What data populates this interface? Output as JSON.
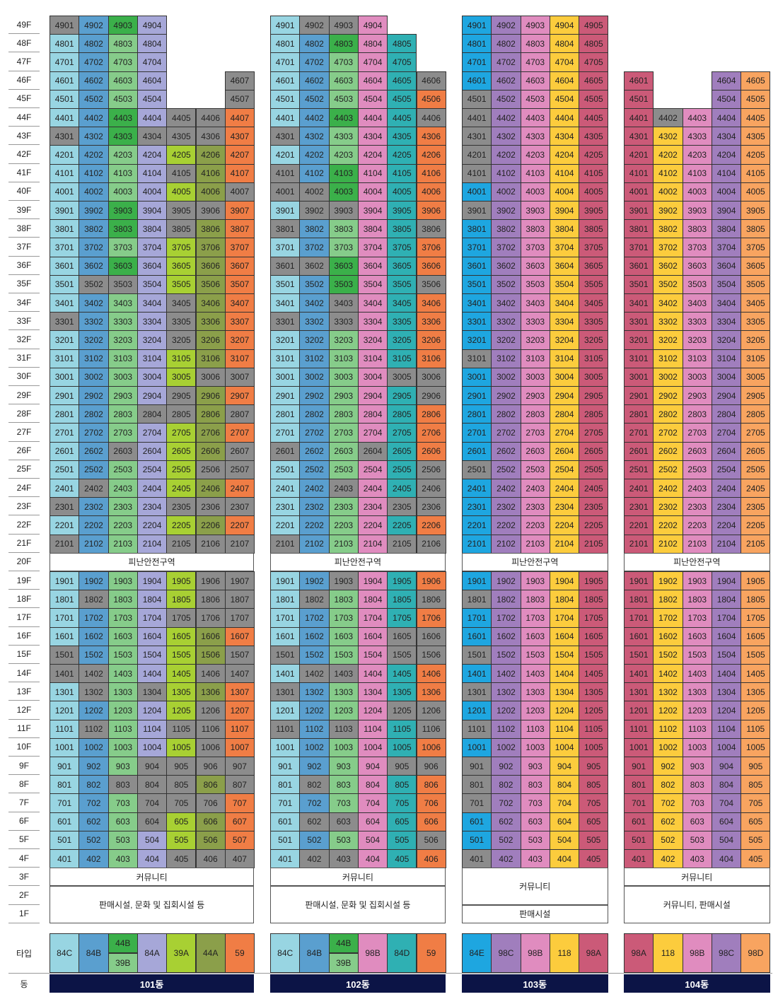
{
  "colors": {
    "skyblue": "#98d5e2",
    "blue": "#5a9fcf",
    "green": "#3bb04a",
    "lightgreen": "#86cc8a",
    "lavender": "#a6a7d8",
    "lime": "#a8d033",
    "olive": "#8b9f4a",
    "orange": "#f07d45",
    "gray": "#8c8c8c",
    "pink": "#e08cbf",
    "teal": "#2fb0b3",
    "cyan": "#1ea6e0",
    "purple": "#a07ebd",
    "yellow": "#fccc3d",
    "crimson": "#cb5a78",
    "peach": "#f8a460"
  },
  "floors": [
    "49F",
    "48F",
    "47F",
    "46F",
    "45F",
    "44F",
    "43F",
    "42F",
    "41F",
    "40F",
    "39F",
    "38F",
    "37F",
    "36F",
    "35F",
    "34F",
    "33F",
    "32F",
    "31F",
    "30F",
    "29F",
    "28F",
    "27F",
    "26F",
    "25F",
    "24F",
    "23F",
    "22F",
    "21F",
    "20F",
    "19F",
    "18F",
    "17F",
    "16F",
    "15F",
    "14F",
    "13F",
    "12F",
    "11F",
    "10F",
    "9F",
    "8F",
    "7F",
    "6F",
    "5F",
    "4F",
    "3F",
    "2F",
    "1F"
  ],
  "row_labels": {
    "type": "타입",
    "dong": "동"
  },
  "buildings": [
    {
      "name": "101동",
      "default_colors": [
        "skyblue",
        "blue",
        "lightgreen",
        "lavender",
        "lime",
        "olive",
        "orange"
      ],
      "types": [
        {
          "label": "84C",
          "color": "skyblue"
        },
        {
          "label": "84B",
          "color": "blue"
        },
        {
          "label": "44B",
          "label2": "39B",
          "color": "green",
          "color2": "lightgreen"
        },
        {
          "label": "84A",
          "color": "lavender"
        },
        {
          "label": "39A",
          "color": "lime"
        },
        {
          "label": "44A",
          "color": "olive"
        },
        {
          "label": "59",
          "color": "orange"
        }
      ],
      "absent": {
        "49": [
          5,
          6,
          7
        ],
        "48": [
          5,
          6,
          7
        ],
        "47": [
          5,
          6,
          7
        ],
        "46": [
          5,
          6
        ],
        "45": [
          5,
          6
        ]
      },
      "gray": {
        "49": [
          1
        ],
        "47": [],
        "46": [
          7
        ],
        "45": [
          7
        ],
        "44": [
          5,
          6
        ],
        "43": [
          1,
          4,
          5,
          6
        ],
        "42": [],
        "41": [
          5
        ],
        "40": [
          7
        ],
        "39": [
          5,
          6
        ],
        "38": [
          5
        ],
        "37": [],
        "36": [],
        "35": [
          2,
          3
        ],
        "34": [
          5
        ],
        "33": [
          1,
          5
        ],
        "32": [
          5
        ],
        "31": [],
        "30": [
          6,
          7
        ],
        "29": [
          5
        ],
        "28": [
          4,
          5,
          7
        ],
        "27": [],
        "26": [
          3,
          7
        ],
        "25": [
          6,
          7
        ],
        "24": [
          2
        ],
        "23": [
          1,
          5,
          6,
          7
        ],
        "22": [],
        "21": [
          1,
          5,
          6,
          7
        ],
        "19": [
          6,
          7
        ],
        "18": [
          2,
          6,
          7
        ],
        "17": [
          5,
          6,
          7
        ],
        "16": [],
        "15": [
          1,
          7
        ],
        "14": [
          1,
          2,
          6,
          7
        ],
        "13": [
          2,
          4
        ],
        "12": [
          6
        ],
        "11": [
          2,
          5,
          6
        ],
        "10": [
          6
        ],
        "9": [
          4,
          5,
          6,
          7
        ],
        "8": [
          3,
          4,
          5,
          7
        ],
        "7": [
          4,
          5,
          6
        ],
        "6": [
          4
        ],
        "5": [],
        "4": [
          5,
          6,
          7
        ]
      },
      "green": {
        "49": [
          3
        ],
        "44": [
          3
        ],
        "43": [
          3
        ],
        "39": [
          3
        ],
        "38": [
          3
        ],
        "36": [
          3
        ]
      },
      "lightgreen_extra": {},
      "lavender_override": {
        "49": [
          4
        ]
      },
      "refuge": "피난안전구역",
      "bottom_bands": [
        {
          "text": "커뮤니티",
          "floors": 1
        },
        {
          "text": "판매시설, 문화 및 집회시설 등",
          "floors": 2
        }
      ]
    },
    {
      "name": "102동",
      "default_colors": [
        "skyblue",
        "blue",
        "lightgreen",
        "pink",
        "teal",
        "orange"
      ],
      "types": [
        {
          "label": "84C",
          "color": "skyblue"
        },
        {
          "label": "84B",
          "color": "blue"
        },
        {
          "label": "44B",
          "label2": "39B",
          "color": "green",
          "color2": "lightgreen"
        },
        {
          "label": "98B",
          "color": "pink"
        },
        {
          "label": "84D",
          "color": "teal"
        },
        {
          "label": "59",
          "color": "orange"
        }
      ],
      "absent": {
        "49": [
          5,
          6
        ],
        "48": [
          6
        ],
        "47": [
          6
        ]
      },
      "gray": {
        "49": [
          2,
          3
        ],
        "47": [],
        "46": [
          6
        ],
        "45": [],
        "44": [
          6
        ],
        "43": [
          1
        ],
        "42": [],
        "41": [
          1
        ],
        "40": [
          1,
          2
        ],
        "39": [
          2,
          3
        ],
        "38": [
          1,
          6
        ],
        "37": [],
        "36": [
          1,
          2
        ],
        "35": [
          6
        ],
        "34": [
          3
        ],
        "33": [
          1,
          3
        ],
        "32": [],
        "31": [],
        "30": [
          5,
          6
        ],
        "29": [
          6
        ],
        "28": [],
        "27": [],
        "26": [
          1,
          4
        ],
        "25": [
          6
        ],
        "24": [
          3,
          6
        ],
        "23": [
          5,
          6
        ],
        "22": [],
        "21": [
          1,
          5,
          6
        ],
        "19": [
          3
        ],
        "18": [
          2,
          6
        ],
        "17": [],
        "16": [
          5,
          6
        ],
        "15": [
          1,
          5,
          6
        ],
        "14": [
          2,
          3
        ],
        "13": [
          1
        ],
        "12": [
          5,
          6
        ],
        "11": [
          1,
          3,
          6
        ],
        "10": [],
        "9": [
          5,
          6
        ],
        "8": [
          2
        ],
        "7": [],
        "6": [
          2,
          3
        ],
        "5": [
          6
        ],
        "4": [
          2,
          3
        ]
      },
      "green": {
        "48": [
          3
        ],
        "44": [
          3
        ],
        "41": [
          3
        ],
        "40": [
          3
        ],
        "36": [
          3
        ],
        "35": [
          3
        ]
      },
      "lavender_override": {},
      "refuge": "피난안전구역",
      "bottom_bands": [
        {
          "text": "커뮤니티",
          "floors": 1
        },
        {
          "text": "판매시설, 문화 및 집회시설 등",
          "floors": 2
        }
      ]
    },
    {
      "name": "103동",
      "default_colors": [
        "cyan",
        "purple",
        "pink",
        "yellow",
        "crimson"
      ],
      "types": [
        {
          "label": "84E",
          "color": "cyan"
        },
        {
          "label": "98C",
          "color": "purple"
        },
        {
          "label": "98B",
          "color": "pink"
        },
        {
          "label": "118",
          "color": "yellow"
        },
        {
          "label": "98A",
          "color": "crimson"
        }
      ],
      "absent": {},
      "gray": {
        "45": [
          1
        ],
        "44": [
          1
        ],
        "43": [
          1
        ],
        "42": [
          1
        ],
        "41": [
          1
        ],
        "39": [
          1
        ],
        "31": [
          1
        ],
        "30": [],
        "25": [
          1
        ],
        "18": [
          1
        ],
        "15": [
          1
        ],
        "13": [
          1
        ],
        "11": [
          1
        ],
        "9": [
          1
        ],
        "8": [
          1
        ],
        "7": [
          1
        ],
        "4": [
          1
        ]
      },
      "green": {},
      "lavender_override": {},
      "refuge": "피난안전구역",
      "bottom_bands": [
        {
          "text": "커뮤니티",
          "floors": 2
        },
        {
          "text": "판매시설",
          "floors": 1
        }
      ]
    },
    {
      "name": "104동",
      "default_colors": [
        "crimson",
        "yellow",
        "pink",
        "purple",
        "peach"
      ],
      "types": [
        {
          "label": "98A",
          "color": "crimson"
        },
        {
          "label": "118",
          "color": "yellow"
        },
        {
          "label": "98B",
          "color": "pink"
        },
        {
          "label": "98C",
          "color": "purple"
        },
        {
          "label": "98D",
          "color": "peach"
        }
      ],
      "absent": {
        "49": [
          1,
          2,
          3,
          4,
          5
        ],
        "48": [
          1,
          2,
          3,
          4,
          5
        ],
        "47": [
          1,
          2,
          3,
          4,
          5
        ],
        "46": [
          2,
          3
        ],
        "45": [
          2,
          3
        ]
      },
      "gray": {
        "44": [
          2
        ]
      },
      "green": {},
      "lavender_override": {},
      "refuge": "피난안전구역",
      "bottom_bands": [
        {
          "text": "커뮤니티",
          "floors": 1
        },
        {
          "text": "커뮤니티, 판매시설",
          "floors": 2
        }
      ]
    }
  ]
}
